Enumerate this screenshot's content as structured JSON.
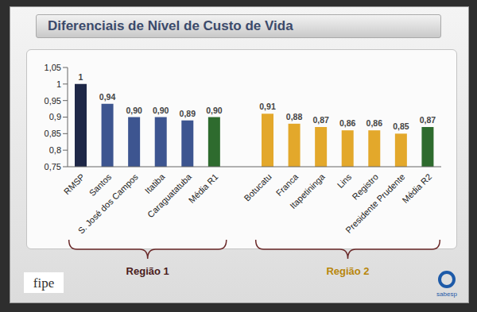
{
  "chart_data": {
    "type": "bar",
    "title": "Diferenciais de Nível de Custo de Vida",
    "categories": [
      "RMSP",
      "Santos",
      "S. José dos Campos",
      "Itatiba",
      "Caraguatatuba",
      "Média R1",
      null,
      "Botucatu",
      "Franca",
      "Itapetininga",
      "Lins",
      "Registro",
      "Presidente Prudente",
      "Média R2"
    ],
    "values": [
      1,
      0.94,
      0.9,
      0.9,
      0.89,
      0.9,
      null,
      0.91,
      0.88,
      0.87,
      0.86,
      0.86,
      0.85,
      0.87
    ],
    "value_labels": [
      "1",
      "0,94",
      "0,90",
      "0,90",
      "0,89",
      "0,90",
      null,
      "0,91",
      "0,88",
      "0,87",
      "0,86",
      "0,86",
      "0,85",
      "0,87"
    ],
    "colors": [
      "#1e2747",
      "#3d5590",
      "#3d5590",
      "#3d5590",
      "#3d5590",
      "#2e6b2e",
      null,
      "#e3a82b",
      "#e3a82b",
      "#e3a82b",
      "#e3a82b",
      "#e3a82b",
      "#e3a82b",
      "#2e6b2e"
    ],
    "ylim": [
      0.75,
      1.05
    ],
    "yticks": [
      {
        "value": 0.75,
        "label": "0,75"
      },
      {
        "value": 0.8,
        "label": "0,8"
      },
      {
        "value": 0.85,
        "label": "0,85"
      },
      {
        "value": 0.9,
        "label": "0,9"
      },
      {
        "value": 0.95,
        "label": "0,95"
      },
      1,
      {
        "value": 1.05,
        "label": "1,05"
      }
    ],
    "grid": false,
    "data_labels": true,
    "groups": [
      {
        "label": "Região 1",
        "from": 0,
        "to": 5,
        "color": "#4a1c1c"
      },
      {
        "label": "Região 2",
        "from": 7,
        "to": 13,
        "color": "#b8860b"
      }
    ],
    "annotations": [
      "fipe",
      "sabesp"
    ]
  }
}
